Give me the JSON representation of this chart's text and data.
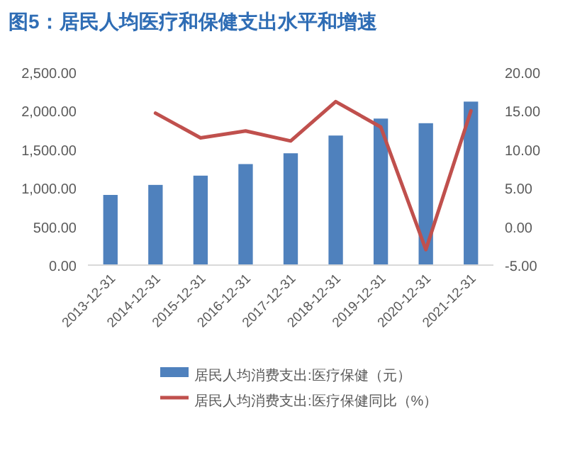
{
  "chart_data": {
    "type": "bar",
    "title": "图5：居民人均医疗和保健支出水平和增速",
    "categories": [
      "2013-12-31",
      "2014-12-31",
      "2015-12-31",
      "2016-12-31",
      "2017-12-31",
      "2018-12-31",
      "2019-12-31",
      "2020-12-31",
      "2021-12-31"
    ],
    "series": [
      {
        "name": "居民人均消费支出:医疗保健（元）",
        "color": "#4f81bd",
        "values": [
          910,
          1040,
          1160,
          1310,
          1450,
          1680,
          1900,
          1840,
          2120
        ]
      },
      {
        "name": "居民人均消费支出:医疗保健同比（%）",
        "type": "line",
        "axis": "y2",
        "color": "#c0504d",
        "values": [
          null,
          14.7,
          11.5,
          12.4,
          11.1,
          16.2,
          12.9,
          -3.0,
          15.0
        ]
      }
    ],
    "ylim": [
      0,
      2500
    ],
    "yticks": [
      {
        "value": 0,
        "label": "0.00"
      },
      {
        "value": 500,
        "label": "500.00"
      },
      {
        "value": 1000,
        "label": "1,000.00"
      },
      {
        "value": 1500,
        "label": "1,500.00"
      },
      {
        "value": 2000,
        "label": "2,000.00"
      },
      {
        "value": 2500,
        "label": "2,500.00"
      }
    ],
    "y2lim": [
      -5,
      20
    ],
    "y2ticks": [
      {
        "value": -5,
        "label": "-5.00"
      },
      {
        "value": 0,
        "label": "0.00"
      },
      {
        "value": 5,
        "label": "5.00"
      },
      {
        "value": 10,
        "label": "10.00"
      },
      {
        "value": 15,
        "label": "15.00"
      },
      {
        "value": 20,
        "label": "20.00"
      }
    ],
    "legend": "bottom",
    "grid": false,
    "marker": "none",
    "line_style": "solid"
  }
}
